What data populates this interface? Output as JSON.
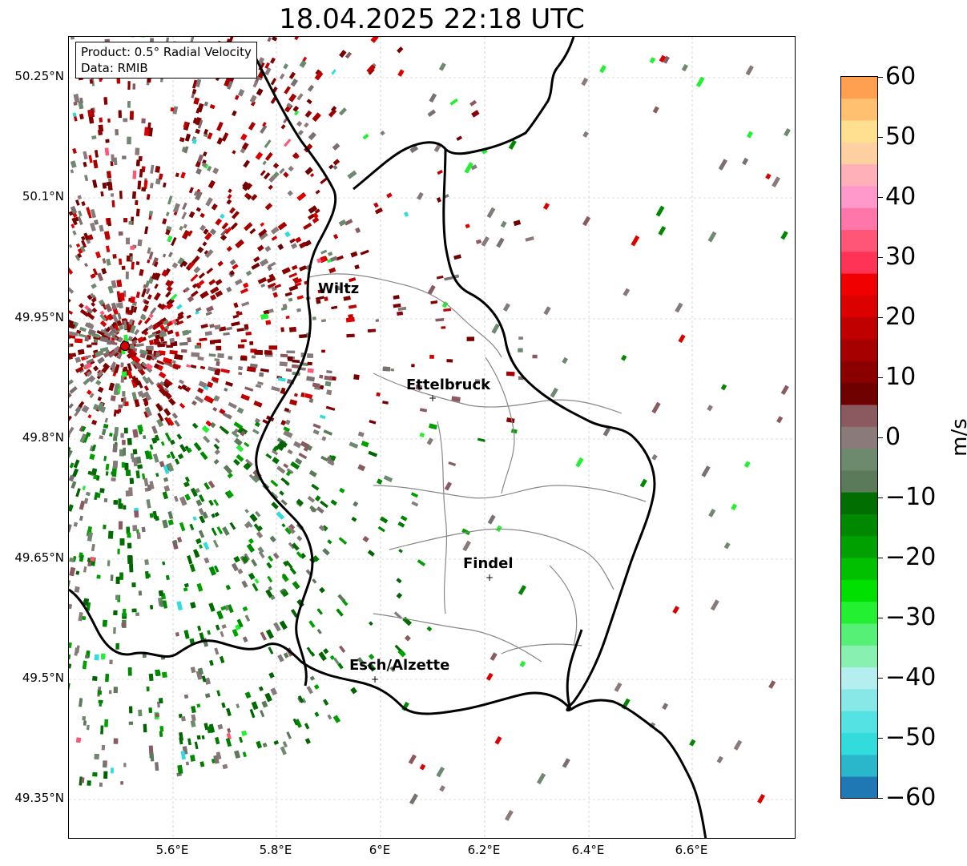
{
  "title": "18.04.2025 22:18 UTC",
  "info": {
    "product": "Product: 0.5° Radial Velocity",
    "data": "Data: RMIB"
  },
  "y_ticks": [
    "50.25°N",
    "50.1°N",
    "49.95°N",
    "49.8°N",
    "49.65°N",
    "49.5°N",
    "49.35°N"
  ],
  "x_ticks": [
    "5.6°E",
    "5.8°E",
    "6°E",
    "6.2°E",
    "6.4°E",
    "6.6°E"
  ],
  "colorbar": {
    "label": "m/s",
    "ticks": [
      "60",
      "50",
      "40",
      "30",
      "20",
      "10",
      "0",
      "−10",
      "−20",
      "−30",
      "−40",
      "−50",
      "−60"
    ],
    "range": [
      -60,
      60
    ],
    "colors": [
      "#1f77b4",
      "#2ab7cc",
      "#33dcdc",
      "#55e2e2",
      "#88e8e8",
      "#b4eeee",
      "#88f0b0",
      "#55f075",
      "#22f030",
      "#00e000",
      "#00c000",
      "#00a000",
      "#008800",
      "#006e00",
      "#5a7a5a",
      "#6e8a6e",
      "#8a7a7a",
      "#8a5a60",
      "#6e0000",
      "#8a0000",
      "#a60000",
      "#c00000",
      "#dd0000",
      "#f00000",
      "#ff3355",
      "#ff5577",
      "#ff77aa",
      "#ff99cc",
      "#ffb0b8",
      "#ffd0a0",
      "#ffe090",
      "#ffc070",
      "#ffa050"
    ]
  },
  "cities": [
    {
      "name": "Wiltz"
    },
    {
      "name": "Ettelbruck"
    },
    {
      "name": "Findel"
    },
    {
      "name": "Esch/Alzette"
    }
  ],
  "radar_site": {
    "color": "#dd0000"
  },
  "border_color": "#000000",
  "canton_color": "#888888"
}
